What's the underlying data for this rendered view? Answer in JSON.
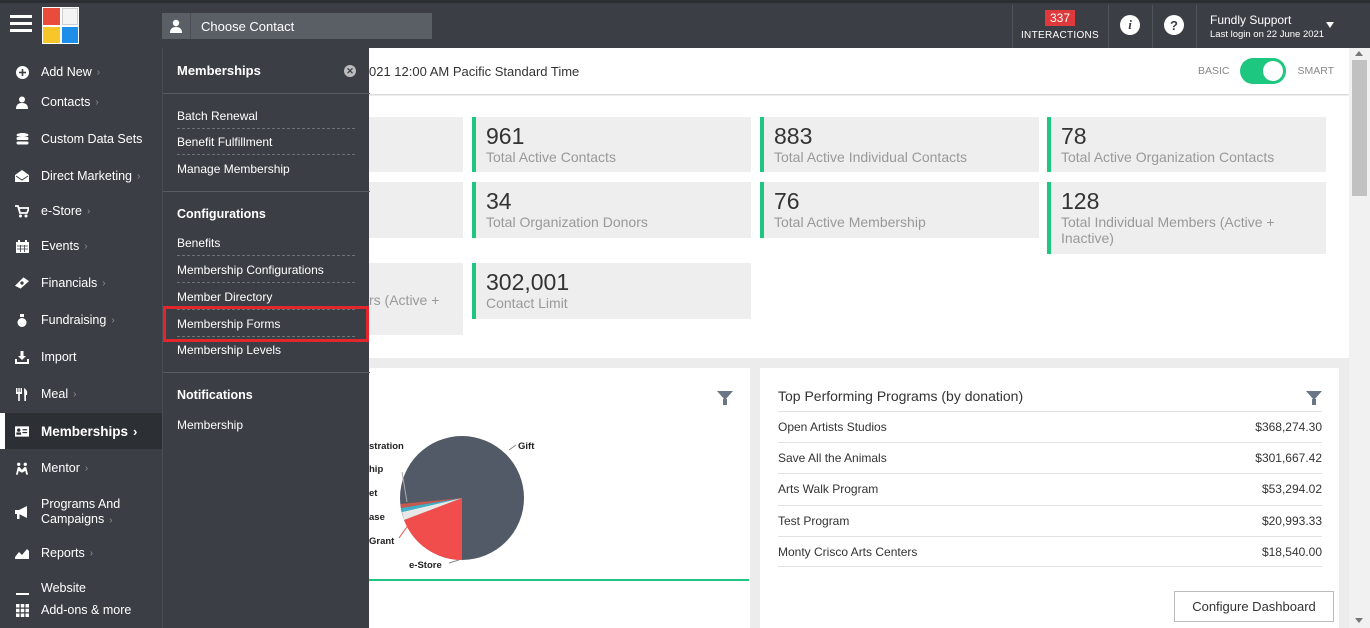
{
  "topbar": {
    "contact_placeholder": "Choose Contact",
    "interactions_count": "337",
    "interactions_label": "INTERACTIONS",
    "info_icon": "i",
    "help_icon": "?",
    "user_name": "Fundly Support",
    "last_login": "Last login on 22 June 2021"
  },
  "sidebar": {
    "items": [
      {
        "label": "Add New",
        "icon": "plus-circle-icon"
      },
      {
        "label": "Contacts",
        "icon": "user-icon"
      },
      {
        "label": "Custom Data Sets",
        "icon": "database-icon"
      },
      {
        "label": "Direct Marketing",
        "icon": "envelope-icon"
      },
      {
        "label": "e-Store",
        "icon": "cart-icon"
      },
      {
        "label": "Events",
        "icon": "calendar-icon"
      },
      {
        "label": "Financials",
        "icon": "money-icon"
      },
      {
        "label": "Fundraising",
        "icon": "moneybag-icon"
      },
      {
        "label": "Import",
        "icon": "import-icon"
      },
      {
        "label": "Meal",
        "icon": "fork-knife-icon"
      },
      {
        "label": "Memberships",
        "icon": "id-card-icon"
      },
      {
        "label": "Mentor",
        "icon": "mentor-icon"
      },
      {
        "label": "Programs And",
        "label2": "Campaigns",
        "icon": "megaphone-icon"
      },
      {
        "label": "Reports",
        "icon": "chart-icon"
      },
      {
        "label": "Website",
        "icon": "website-icon"
      },
      {
        "label": "Add-ons & more",
        "icon": "grid-icon"
      }
    ]
  },
  "flyout": {
    "title": "Memberships",
    "section1": [
      "Batch Renewal",
      "Benefit Fulfillment",
      "Manage Membership"
    ],
    "section2_title": "Configurations",
    "section2": [
      "Benefits",
      "Membership Configurations",
      "Member Directory",
      "Membership Forms",
      "Membership Levels"
    ],
    "section3_title": "Notifications",
    "section3": [
      "Membership"
    ]
  },
  "filter": {
    "date_text": "021 12:00 AM Pacific Standard Time",
    "toggle_left": "BASIC",
    "toggle_right": "SMART"
  },
  "stats": [
    {
      "value": "961",
      "label": "Total Active Contacts"
    },
    {
      "value": "883",
      "label": "Total Active Individual Contacts"
    },
    {
      "value": "78",
      "label": "Total Active Organization Contacts"
    },
    {
      "value": "34",
      "label": "Total Organization Donors"
    },
    {
      "value": "76",
      "label": "Total Active Membership"
    },
    {
      "value": "128",
      "label": "Total Individual Members (Active +",
      "label2": "Inactive)"
    },
    {
      "value": "302,001",
      "label": "Contact Limit"
    }
  ],
  "partial_stat_label": "rs (Active +",
  "pie": {
    "labels": [
      "stration",
      "hip",
      "et",
      "ase",
      "Grant",
      "Gift",
      "e-Store"
    ]
  },
  "programs": {
    "title": "Top Performing Programs (by donation)",
    "rows": [
      {
        "name": "Open Artists Studios",
        "amount": "$368,274.30"
      },
      {
        "name": "Save All the Animals",
        "amount": "$301,667.42"
      },
      {
        "name": "Arts Walk Program",
        "amount": "$53,294.02"
      },
      {
        "name": "Test Program",
        "amount": "$20,993.33"
      },
      {
        "name": "Monty Crisco Arts Centers",
        "amount": "$18,540.00"
      }
    ]
  },
  "configure_button": "Configure Dashboard",
  "colors": {
    "accent": "#1ec780",
    "sidebar": "#3b3f45",
    "badge": "#e0393c",
    "highlight": "#e3262b"
  }
}
